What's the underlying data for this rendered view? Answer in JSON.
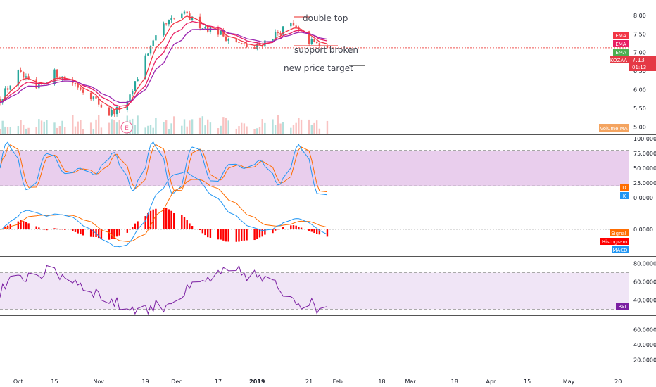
{
  "colors": {
    "candle_up": "#26a69a",
    "candle_down": "#ef5350",
    "ema_fast": "#f23645",
    "ema_mid": "#e91e63",
    "ema_slow": "#9c27b0",
    "stoch_k": "#2196f3",
    "stoch_d": "#ff6d00",
    "macd": "#2196f3",
    "signal": "#ff6d00",
    "histogram": "#ff0000",
    "rsi": "#7b1fa2",
    "band_fill": "#e1bee7",
    "ema_tag_1": "#f23645",
    "ema_tag_2": "#e91e63",
    "ema_tag_3": "#4caf50",
    "ticker_tag": "#e53945",
    "volume_ma_tag": "#f4a460",
    "k_tag": "#2196f3",
    "d_tag": "#ff6d00",
    "signal_tag": "#ff6d00",
    "histogram_tag": "#ff0000",
    "macd_tag": "#2196f3",
    "rsi_tag": "#7b1fa2"
  },
  "annotations": {
    "double_top": "double top",
    "support_broken": "support broken",
    "new_price_target": "new price target",
    "earnings_marker": "E"
  },
  "price_tags": {
    "ema_1": "EMA",
    "ema_2": "EMA",
    "ema_3": "EMA",
    "ticker": "KOZAA",
    "last_price": "7.13",
    "countdown": "01:13",
    "volume_ma": "Volume MA"
  },
  "indicator_tags": {
    "stoch_d": "D",
    "stoch_k": "K",
    "signal": "Signal",
    "histogram": "Histogram",
    "macd": "MACD",
    "rsi": "RSI"
  },
  "axes": {
    "price_ticks": [
      "8.00",
      "7.50",
      "7.00",
      "6.50",
      "6.00",
      "5.50",
      "5.00"
    ],
    "stoch_ticks": [
      "100.0000",
      "75.0000",
      "50.0000",
      "25.0000",
      "0.0000"
    ],
    "macd_ticks": [
      "0.0000"
    ],
    "rsi_ticks": [
      "80.0000",
      "60.0000",
      "40.0000"
    ],
    "empty_pane_ticks": [
      "60.0000",
      "40.0000",
      "20.0000"
    ],
    "x_ticks": [
      "Oct",
      "15",
      "Nov",
      "19",
      "Dec",
      "17",
      "2019",
      "21",
      "Feb",
      "18",
      "Mar",
      "18",
      "Apr",
      "15",
      "May",
      "20"
    ]
  },
  "chart_data": {
    "type": "candlestick",
    "symbol": "KOZAA",
    "series": [
      {
        "name": "price",
        "x": [
          "2018-09-24",
          "2018-10-01",
          "2018-10-08",
          "2018-10-15",
          "2018-10-22",
          "2018-10-29",
          "2018-11-05",
          "2018-11-12",
          "2018-11-19",
          "2018-11-26",
          "2018-12-03",
          "2018-12-10",
          "2018-12-17",
          "2018-12-24",
          "2018-12-31",
          "2019-01-07",
          "2019-01-14",
          "2019-01-21",
          "2019-01-28"
        ],
        "close": [
          5.75,
          6.45,
          6.0,
          6.45,
          6.2,
          5.85,
          5.35,
          5.6,
          6.9,
          7.7,
          8.05,
          7.75,
          7.55,
          7.25,
          7.1,
          7.45,
          7.75,
          7.3,
          7.13
        ]
      }
    ],
    "last_price": 7.13,
    "ylim": [
      4.8,
      8.3
    ],
    "xlim": [
      "2018-09-24",
      "2019-05-24"
    ],
    "indicators": {
      "stochastic": {
        "levels": [
          20,
          80
        ],
        "ylim": [
          0,
          100
        ],
        "last_k": 5,
        "last_d": 10
      },
      "macd": {
        "ylim": [
          -0.25,
          0.25
        ],
        "last": -0.05
      },
      "rsi": {
        "levels": [
          30,
          70
        ],
        "ylim": [
          25,
          85
        ],
        "last": 33
      }
    },
    "grid": false,
    "annotations": [
      "double top",
      "support broken",
      "new price target"
    ]
  }
}
